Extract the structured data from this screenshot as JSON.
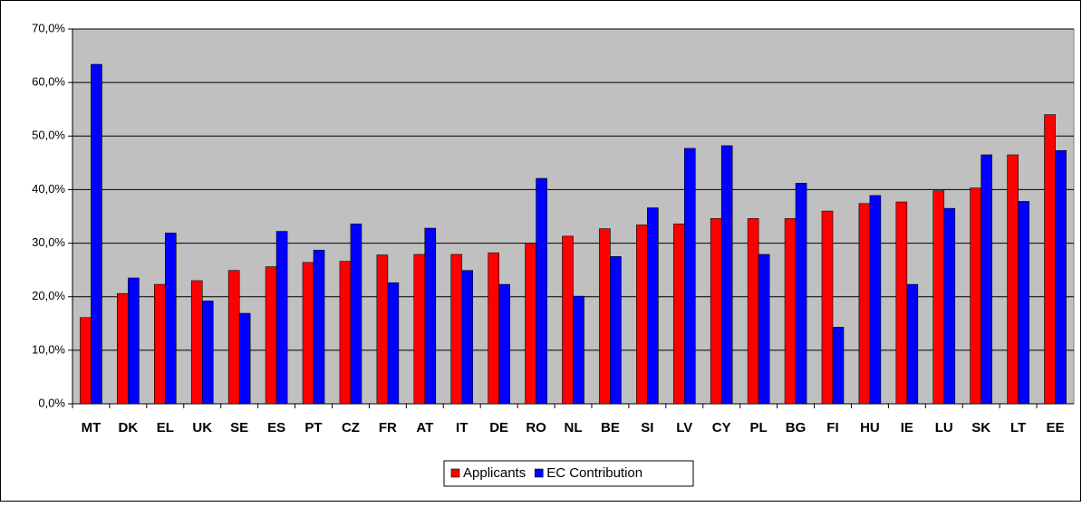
{
  "chart_data": {
    "type": "bar",
    "categories": [
      "MT",
      "DK",
      "EL",
      "UK",
      "SE",
      "ES",
      "PT",
      "CZ",
      "FR",
      "AT",
      "IT",
      "DE",
      "RO",
      "NL",
      "BE",
      "SI",
      "LV",
      "CY",
      "PL",
      "BG",
      "FI",
      "HU",
      "IE",
      "LU",
      "SK",
      "LT",
      "EE"
    ],
    "series": [
      {
        "name": "Applicants",
        "color": "#ff0000",
        "values": [
          16.1,
          20.6,
          22.3,
          23.0,
          24.9,
          25.6,
          26.4,
          26.6,
          27.8,
          27.9,
          27.9,
          28.2,
          30.0,
          31.3,
          32.7,
          33.4,
          33.6,
          34.6,
          34.6,
          34.6,
          36.0,
          37.4,
          37.7,
          39.8,
          40.3,
          46.5,
          54.0
        ]
      },
      {
        "name": "EC Contribution",
        "color": "#0000ff",
        "values": [
          63.4,
          23.5,
          31.9,
          19.2,
          16.9,
          32.2,
          28.7,
          33.6,
          22.6,
          32.8,
          24.9,
          22.3,
          42.1,
          20.1,
          27.5,
          36.6,
          47.7,
          48.2,
          27.9,
          41.2,
          14.3,
          38.9,
          22.3,
          36.5,
          46.5,
          37.8,
          47.3
        ]
      }
    ],
    "ylim": [
      0,
      70
    ],
    "yticks": [
      {
        "value": 0,
        "label": "0,0%"
      },
      {
        "value": 10,
        "label": "10,0%"
      },
      {
        "value": 20,
        "label": "20,0%"
      },
      {
        "value": 30,
        "label": "30,0%"
      },
      {
        "value": 40,
        "label": "40,0%"
      },
      {
        "value": 50,
        "label": "50,0%"
      },
      {
        "value": 60,
        "label": "60,0%"
      },
      {
        "value": 70,
        "label": "70,0%"
      }
    ],
    "grid": true,
    "legend": "bottom",
    "plot_background": "#c0c0c0"
  }
}
